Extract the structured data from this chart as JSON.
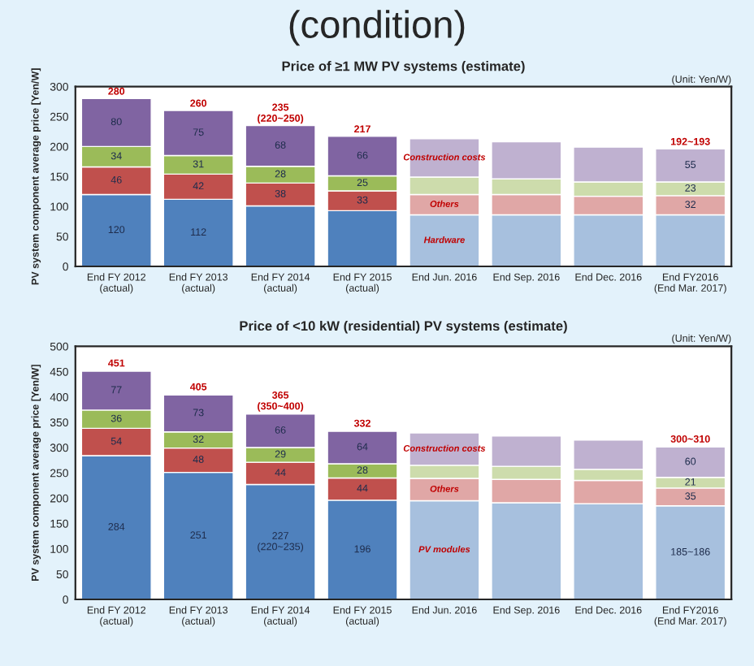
{
  "chart_data": [
    {
      "type": "bar",
      "stacked": true,
      "subtitle": "(condition)",
      "title": "Price of ≥1 MW PV systems (estimate)",
      "ylabel": "PV system component average price [Yen/W]",
      "categories": [
        "End FY 2012\n(actual)",
        "End FY 2013\n(actual)",
        "End FY 2014\n(actual)",
        "End FY 2015\n(actual)",
        "End Jun. 2016",
        "End Sep. 2016",
        "End Dec. 2016",
        "End FY2016\n(End Mar. 2017)"
      ],
      "series": [
        {
          "color": "#4f81bd",
          "colors": [
            null,
            null,
            null,
            null,
            "#a7c0de",
            "#a7c0de",
            "#a7c0de",
            "#a7c0de"
          ],
          "values": [
            120,
            112,
            101,
            93,
            86,
            86,
            86,
            86
          ],
          "value_labels": [
            "120",
            "112",
            null,
            null,
            null,
            null,
            null,
            null
          ]
        },
        {
          "color": "#c0504d",
          "colors": [
            null,
            null,
            null,
            null,
            "#e0a7a6",
            "#e0a7a6",
            "#e0a7a6",
            "#e0a7a6"
          ],
          "values": [
            46,
            42,
            38,
            33,
            34,
            34,
            31,
            32
          ],
          "value_labels": [
            "46",
            "42",
            "38",
            "33",
            null,
            null,
            null,
            "32"
          ]
        },
        {
          "color": "#9bbb59",
          "colors": [
            null,
            null,
            null,
            null,
            "#cddcac",
            "#cddcac",
            "#cddcac",
            "#cddcac"
          ],
          "values": [
            34,
            31,
            28,
            25,
            29,
            26,
            24,
            23
          ],
          "value_labels": [
            "34",
            "31",
            "28",
            "25",
            null,
            null,
            null,
            "23"
          ]
        },
        {
          "color": "#8064a2",
          "colors": [
            null,
            null,
            null,
            null,
            "#bfb1d0",
            "#bfb1d0",
            "#bfb1d0",
            "#bfb1d0"
          ],
          "values": [
            80,
            75,
            68,
            66,
            64,
            62,
            58,
            55
          ],
          "value_labels": [
            "80",
            "75",
            "68",
            "66",
            null,
            null,
            null,
            "55"
          ]
        }
      ],
      "totals": [
        "280",
        "260",
        "235\n(220~250)",
        "217",
        null,
        null,
        null,
        "192~193"
      ],
      "ylim": [
        0,
        300
      ],
      "yticks": [
        0,
        50,
        100,
        150,
        200,
        250,
        300
      ],
      "grid": false,
      "legend": false,
      "annotations": [
        "(Unit: Yen/W)",
        "Construction costs",
        "Others",
        "Hardware"
      ]
    },
    {
      "type": "bar",
      "stacked": true,
      "title": "Price of <10 kW (residential) PV systems (estimate)",
      "ylabel": "PV system component average price [Yen/W]",
      "categories": [
        "End FY 2012\n(actual)",
        "End FY 2013\n(actual)",
        "End FY 2014\n(actual)",
        "End FY 2015\n(actual)",
        "End Jun. 2016",
        "End Sep. 2016",
        "End Dec. 2016",
        "End FY2016\n(End Mar. 2017)"
      ],
      "series": [
        {
          "color": "#4f81bd",
          "colors": [
            null,
            null,
            null,
            null,
            "#a7c0de",
            "#a7c0de",
            "#a7c0de",
            "#a7c0de"
          ],
          "values": [
            284,
            251,
            227,
            196,
            195,
            191,
            189,
            185
          ],
          "value_labels": [
            "284",
            "251",
            "227\n(220~235)",
            "196",
            null,
            null,
            null,
            "185~186"
          ]
        },
        {
          "color": "#c0504d",
          "colors": [
            null,
            null,
            null,
            null,
            "#e0a7a6",
            "#e0a7a6",
            "#e0a7a6",
            "#e0a7a6"
          ],
          "values": [
            54,
            48,
            44,
            44,
            44,
            46,
            46,
            35
          ],
          "value_labels": [
            "54",
            "48",
            "44",
            "44",
            null,
            null,
            null,
            "35"
          ]
        },
        {
          "color": "#9bbb59",
          "colors": [
            null,
            null,
            null,
            null,
            "#cddcac",
            "#cddcac",
            "#cddcac",
            "#cddcac"
          ],
          "values": [
            36,
            32,
            29,
            28,
            26,
            26,
            22,
            21
          ],
          "value_labels": [
            "36",
            "32",
            "29",
            "28",
            null,
            null,
            null,
            "21"
          ]
        },
        {
          "color": "#8064a2",
          "colors": [
            null,
            null,
            null,
            null,
            "#bfb1d0",
            "#bfb1d0",
            "#bfb1d0",
            "#bfb1d0"
          ],
          "values": [
            77,
            73,
            66,
            64,
            64,
            60,
            58,
            60
          ],
          "value_labels": [
            "77",
            "73",
            "66",
            "64",
            null,
            null,
            null,
            "60"
          ]
        }
      ],
      "totals": [
        "451",
        "405",
        "365\n(350~400)",
        "332",
        null,
        null,
        null,
        "300~310"
      ],
      "ylim": [
        0,
        500
      ],
      "yticks": [
        0,
        50,
        100,
        150,
        200,
        250,
        300,
        350,
        400,
        450,
        500
      ],
      "grid": false,
      "legend": false,
      "annotations": [
        "(Unit: Yen/W)",
        "Construction costs",
        "Others",
        "PV modules"
      ]
    }
  ]
}
